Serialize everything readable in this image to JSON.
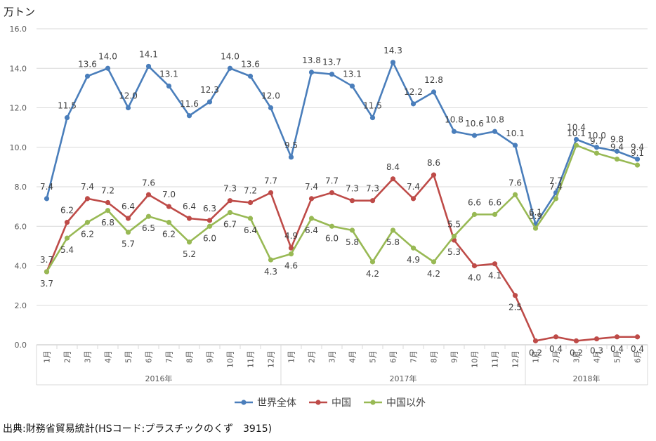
{
  "unit_label": "万トン",
  "source": "出典:財務省貿易統計(HSコード:プラスチックのくず　3915)",
  "chart_data": {
    "type": "line",
    "ylim": [
      0,
      16
    ],
    "y_ticks": [
      "0.0",
      "2.0",
      "4.0",
      "6.0",
      "8.0",
      "10.0",
      "12.0",
      "14.0",
      "16.0"
    ],
    "grid": true,
    "legend": "bottom",
    "categories": [
      "1月",
      "2月",
      "3月",
      "4月",
      "5月",
      "6月",
      "7月",
      "8月",
      "9月",
      "10月",
      "11月",
      "12月",
      "1月",
      "2月",
      "3月",
      "4月",
      "5月",
      "6月",
      "7月",
      "8月",
      "9月",
      "10月",
      "11月",
      "12月",
      "1月",
      "2月",
      "3月",
      "4月",
      "5月",
      "6月"
    ],
    "years": [
      {
        "label": "2016年",
        "start": 0,
        "end": 11
      },
      {
        "label": "2017年",
        "start": 12,
        "end": 23
      },
      {
        "label": "2018年",
        "start": 24,
        "end": 29
      }
    ],
    "series": [
      {
        "name": "世界全体",
        "color": "#4a7ebb",
        "values": [
          7.4,
          11.5,
          13.6,
          14.0,
          12.0,
          14.1,
          13.1,
          11.6,
          12.3,
          14.0,
          13.6,
          12.0,
          9.5,
          13.8,
          13.7,
          13.1,
          11.5,
          14.3,
          12.2,
          12.8,
          10.8,
          10.6,
          10.8,
          10.1,
          6.1,
          7.7,
          10.4,
          10.0,
          9.8,
          9.4
        ],
        "labels": [
          "7.4",
          "11.5",
          "13.6",
          "14.0",
          "12.0",
          "14.1",
          "13.1",
          "11.6",
          "12.3",
          "14.0",
          "13.6",
          "12.0",
          "9.5",
          "13.8",
          "13.7",
          "13.1",
          "11.5",
          "14.3",
          "12.2",
          "12.8",
          "10.8",
          "10.6",
          "10.8",
          "10.1",
          "6.1",
          "7.7",
          "10.4",
          "10.0",
          "9.8",
          "9.4"
        ]
      },
      {
        "name": "中国",
        "color": "#be4b48",
        "values": [
          3.7,
          6.2,
          7.4,
          7.2,
          6.4,
          7.6,
          7.0,
          6.4,
          6.3,
          7.3,
          7.2,
          7.7,
          4.9,
          7.4,
          7.7,
          7.3,
          7.3,
          8.4,
          7.4,
          8.6,
          5.3,
          4.0,
          4.1,
          2.5,
          0.2,
          0.4,
          0.2,
          0.3,
          0.4,
          0.4
        ],
        "labels": [
          "3.7",
          "6.2",
          "7.4",
          "7.2",
          "6.4",
          "7.6",
          "7.0",
          "6.4",
          "6.3",
          "7.3",
          "7.2",
          "7.7",
          "4.9",
          "7.4",
          "7.7",
          "7.3",
          "7.3",
          "8.4",
          "7.4",
          "8.6",
          "5.3",
          "4.0",
          "4.1",
          "2.5",
          "0.2",
          "0.4",
          "0.2",
          "0.3",
          "0.4",
          "0.4"
        ]
      },
      {
        "name": "中国以外",
        "color": "#98b954",
        "values": [
          3.7,
          5.4,
          6.2,
          6.8,
          5.7,
          6.5,
          6.2,
          5.2,
          6.0,
          6.7,
          6.4,
          4.3,
          4.6,
          6.4,
          6.0,
          5.8,
          4.2,
          5.8,
          4.9,
          4.2,
          5.5,
          6.6,
          6.6,
          7.6,
          5.9,
          7.4,
          10.1,
          9.7,
          9.4,
          9.1
        ],
        "labels": [
          "3.7",
          "5.4",
          "6.2",
          "6.8",
          "5.7",
          "6.5",
          "6.2",
          "5.2",
          "6.0",
          "6.7",
          "6.4",
          "4.3",
          "4.6",
          "6.4",
          "6.0",
          "5.8",
          "4.2",
          "5.8",
          "4.9",
          "4.2",
          "5.5",
          "6.6",
          "6.6",
          "7.6",
          "5.9",
          "7.4",
          "10.1",
          "9.7",
          "9.4",
          "9.1"
        ]
      }
    ]
  }
}
